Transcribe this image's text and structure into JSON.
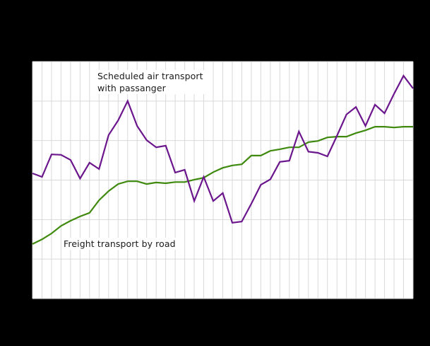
{
  "chart_data": {
    "type": "line",
    "title": "",
    "xlabel": "",
    "ylabel": "",
    "note": "Axis tick labels are rendered black-on-black and not visible; values are expressed in gridline units (0 = bottom of plot, 6 = top).",
    "ylim": [
      0,
      6
    ],
    "y_gridlines": [
      0,
      1,
      2,
      3,
      4,
      5,
      6
    ],
    "x_count": 41,
    "grid": true,
    "legend": "inline labels",
    "x": [
      0,
      1,
      2,
      3,
      4,
      5,
      6,
      7,
      8,
      9,
      10,
      11,
      12,
      13,
      14,
      15,
      16,
      17,
      18,
      19,
      20,
      21,
      22,
      23,
      24,
      25,
      26,
      27,
      28,
      29,
      30,
      31,
      32,
      33,
      34,
      35,
      36,
      37,
      38,
      39,
      40
    ],
    "series": [
      {
        "name": "Scheduled air transport with passanger",
        "color": "#6b168c",
        "values": [
          3.17,
          3.08,
          3.65,
          3.64,
          3.51,
          3.04,
          3.44,
          3.28,
          4.14,
          4.51,
          5.0,
          4.37,
          4.01,
          3.83,
          3.87,
          3.19,
          3.26,
          2.47,
          3.08,
          2.47,
          2.67,
          1.92,
          1.95,
          2.4,
          2.88,
          3.02,
          3.46,
          3.49,
          4.23,
          3.72,
          3.69,
          3.6,
          4.12,
          4.66,
          4.85,
          4.37,
          4.91,
          4.69,
          5.18,
          5.64,
          5.32
        ]
      },
      {
        "name": "Freight transport by road",
        "color": "#3f8a0e",
        "values": [
          1.38,
          1.5,
          1.65,
          1.84,
          1.97,
          2.08,
          2.17,
          2.49,
          2.72,
          2.9,
          2.97,
          2.97,
          2.9,
          2.94,
          2.92,
          2.95,
          2.95,
          3.01,
          3.06,
          3.2,
          3.31,
          3.37,
          3.4,
          3.62,
          3.62,
          3.74,
          3.78,
          3.83,
          3.83,
          3.96,
          3.99,
          4.08,
          4.1,
          4.1,
          4.19,
          4.26,
          4.35,
          4.35,
          4.33,
          4.35,
          4.35
        ]
      }
    ]
  },
  "labels": {
    "air": "Scheduled air transport\nwith passanger",
    "road": "Freight transport by road"
  },
  "colors": {
    "background": "#000000",
    "plot_background": "#ffffff",
    "gridline": "#d9d9d9"
  }
}
